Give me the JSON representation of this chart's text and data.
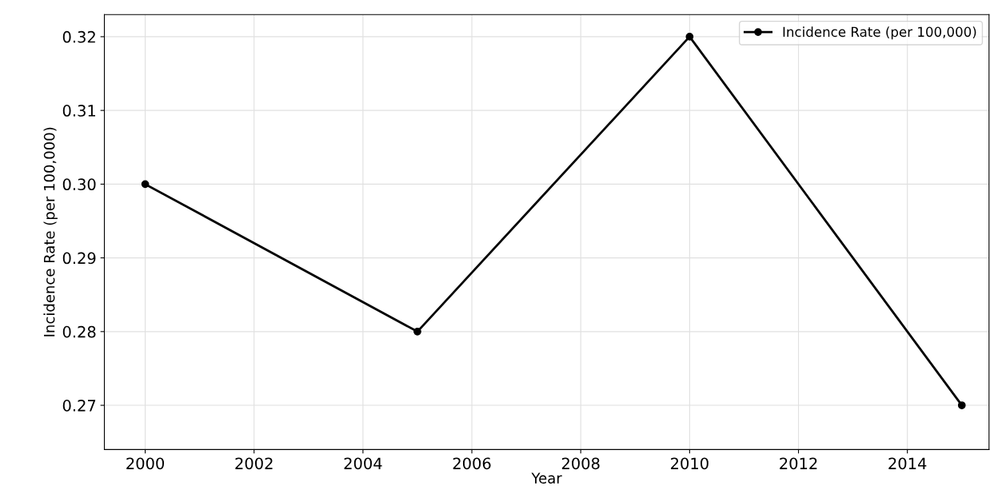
{
  "chart_data": {
    "type": "line",
    "xlabel": "Year",
    "ylabel": "Incidence Rate (per 100,000)",
    "x": [
      2000,
      2005,
      2010,
      2015
    ],
    "series": [
      {
        "name": "Incidence Rate (per 100,000)",
        "color": "#000000",
        "values": [
          0.3,
          0.28,
          0.32,
          0.27
        ]
      }
    ],
    "xlim": [
      1999.25,
      2015.5
    ],
    "xticks": [
      2000,
      2002,
      2004,
      2006,
      2008,
      2010,
      2012,
      2014
    ],
    "ylim": [
      0.264,
      0.323
    ],
    "yticks": [
      {
        "value": 0.27,
        "label": "0.27"
      },
      {
        "value": 0.28,
        "label": "0.28"
      },
      {
        "value": 0.29,
        "label": "0.29"
      },
      {
        "value": 0.3,
        "label": "0.30"
      },
      {
        "value": 0.31,
        "label": "0.31"
      },
      {
        "value": 0.32,
        "label": "0.32"
      }
    ],
    "grid": true,
    "legend": "top right",
    "marker": "circle",
    "line_style": "solid"
  }
}
